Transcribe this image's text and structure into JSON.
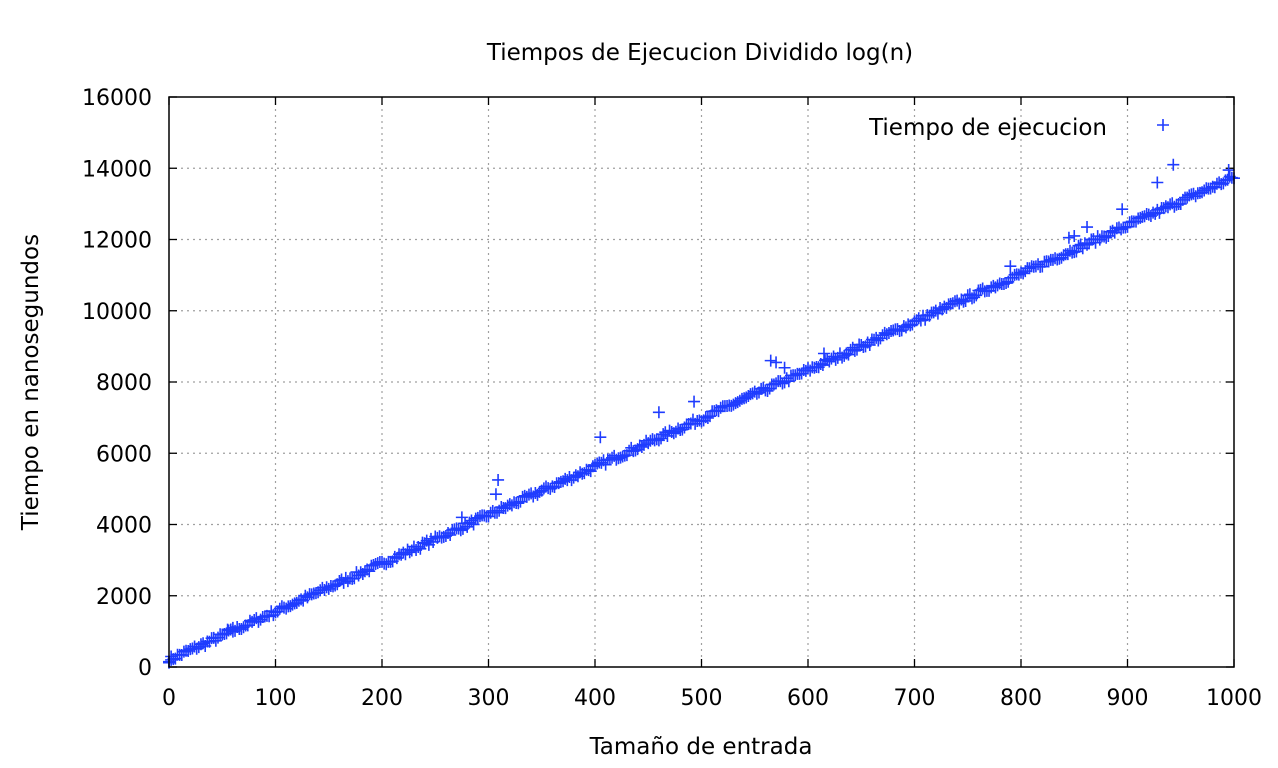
{
  "chart_data": {
    "type": "scatter",
    "title": "Tiempos de Ejecucion Dividido log(n)",
    "xlabel": "Tamaño de entrada",
    "ylabel": "Tiempo en nanosegundos",
    "xlim": [
      0,
      1000
    ],
    "ylim": [
      0,
      16000
    ],
    "x_ticks": [
      0,
      100,
      200,
      300,
      400,
      500,
      600,
      700,
      800,
      900,
      1000
    ],
    "y_ticks": [
      0,
      2000,
      4000,
      6000,
      8000,
      10000,
      12000,
      14000,
      16000
    ],
    "grid": true,
    "legend_position": "top-right",
    "series": [
      {
        "name": "Tiempo de ejecucion",
        "marker": "+",
        "color": "#1f3cff",
        "trend": {
          "x": [
            0,
            1000
          ],
          "y": [
            200,
            13750
          ]
        },
        "x_step": 2,
        "outliers": [
          [
            0,
            150
          ],
          [
            2,
            200
          ],
          [
            55,
            1050
          ],
          [
            60,
            1100
          ],
          [
            275,
            4200
          ],
          [
            307,
            4850
          ],
          [
            309,
            5250
          ],
          [
            405,
            6450
          ],
          [
            460,
            7150
          ],
          [
            493,
            7450
          ],
          [
            565,
            8600
          ],
          [
            570,
            8550
          ],
          [
            578,
            8400
          ],
          [
            615,
            8800
          ],
          [
            790,
            11250
          ],
          [
            845,
            12050
          ],
          [
            850,
            12100
          ],
          [
            862,
            12350
          ],
          [
            895,
            12850
          ],
          [
            928,
            13600
          ],
          [
            943,
            14100
          ],
          [
            995,
            13950
          ]
        ]
      }
    ]
  }
}
